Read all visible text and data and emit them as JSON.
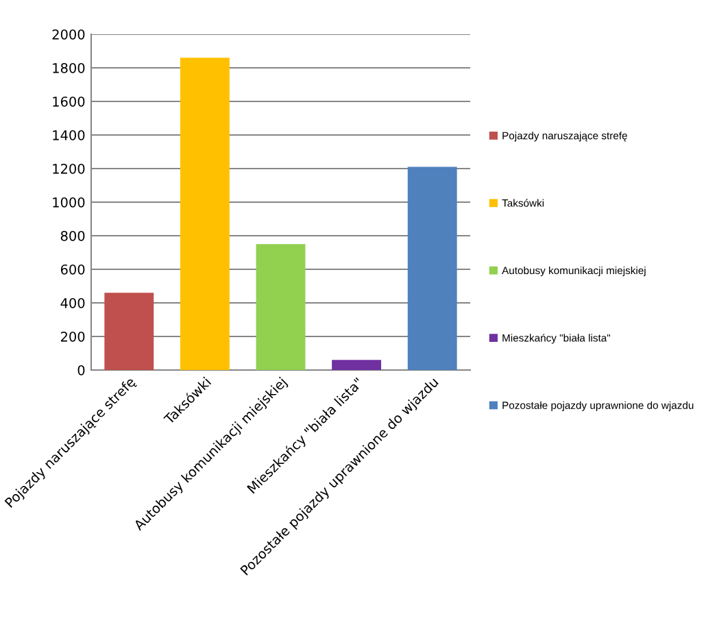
{
  "chart_data": {
    "type": "bar",
    "stacked": true,
    "categories": [
      "Pojazdy naruszające strefę",
      "Taksówki",
      "Autobusy komunikacji miejskiej",
      "Mieszkańcy \"biała lista\"",
      "Pozostałe pojazdy uprawnione do wjazdu"
    ],
    "series": [
      {
        "name": "Pojazdy naruszające strefę",
        "color": "#c0504d",
        "values": [
          460,
          null,
          null,
          null,
          null
        ]
      },
      {
        "name": "Taksówki",
        "color": "#ffc000",
        "values": [
          null,
          1860,
          null,
          null,
          null
        ]
      },
      {
        "name": "Autobusy komunikacji miejskiej",
        "color": "#92d050",
        "values": [
          null,
          null,
          750,
          null,
          null
        ]
      },
      {
        "name": "Mieszkańcy \"biała lista\"",
        "color": "#7030a0",
        "values": [
          null,
          null,
          null,
          60,
          null
        ]
      },
      {
        "name": "Pozostałe pojazdy uprawnione do wjazdu",
        "color": "#4f81bd",
        "values": [
          null,
          null,
          null,
          null,
          1210
        ]
      }
    ],
    "ylim": [
      0,
      2000
    ],
    "yticks": [
      0,
      200,
      400,
      600,
      800,
      1000,
      1200,
      1400,
      1600,
      1800,
      2000
    ],
    "grid": "y",
    "legend": "right"
  }
}
